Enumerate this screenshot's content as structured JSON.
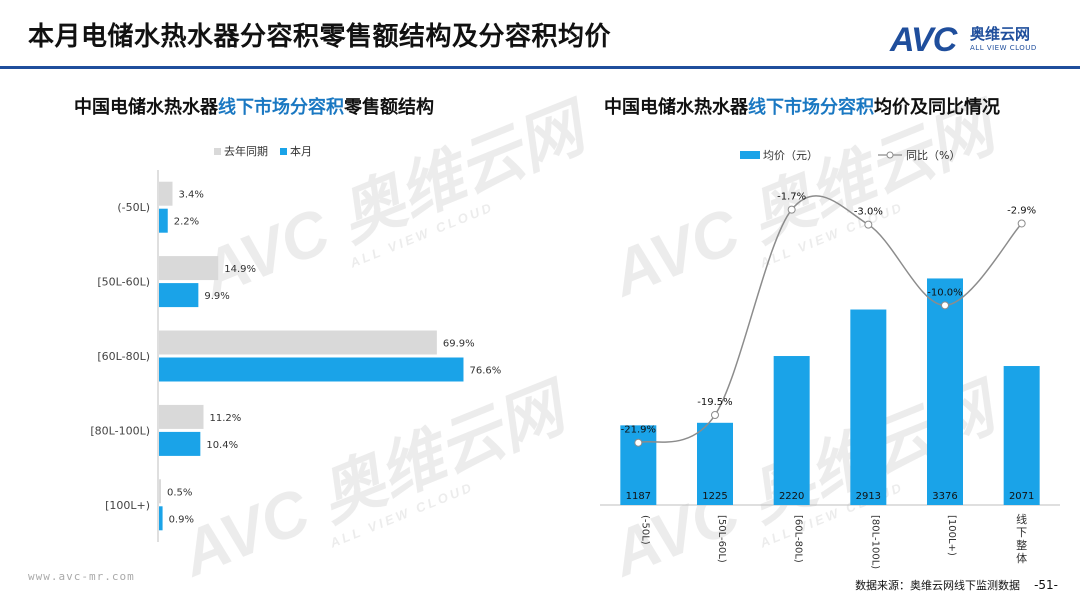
{
  "header": {
    "title": "本月电储水热水器分容积零售额结构及分容积均价",
    "logo_mark": "AVC",
    "logo_cn": "奥维云网",
    "logo_en": "ALL VIEW CLOUD"
  },
  "watermark": {
    "mark": "AVC",
    "cn": "奥维云网",
    "en": "ALL VIEW CLOUD"
  },
  "colors": {
    "primary": "#1aa3e8",
    "grey": "#d9d9d9",
    "brand": "#1f4e9c",
    "line": "#8c8c8c"
  },
  "left_chart": {
    "title_prefix": "中国电储水热水器",
    "title_highlight": "线下市场分容积",
    "title_suffix": "零售额结构"
  },
  "right_chart": {
    "title_prefix": "中国电储水热水器",
    "title_highlight": "线下市场分容积",
    "title_suffix": "均价及同比情况"
  },
  "chart_data": [
    {
      "type": "bar",
      "orientation": "horizontal",
      "categories": [
        "(-50L)",
        "[50L-60L)",
        "[60L-80L)",
        "[80L-100L)",
        "[100L+)"
      ],
      "series": [
        {
          "name": "去年同期",
          "values": [
            3.4,
            14.9,
            69.9,
            11.2,
            0.5
          ],
          "labels": [
            "3.4%",
            "14.9%",
            "69.9%",
            "11.2%",
            "0.5%"
          ]
        },
        {
          "name": "本月",
          "values": [
            2.2,
            9.9,
            76.6,
            10.4,
            0.9
          ],
          "labels": [
            "2.2%",
            "9.9%",
            "76.6%",
            "10.4%",
            "0.9%"
          ]
        }
      ],
      "grid": false,
      "legend": "top"
    },
    {
      "type": "bar",
      "categories": [
        "(-50L)",
        "[50L-60L)",
        "[60L-80L)",
        "[80L-100L)",
        "[100L+)",
        "线下整体"
      ],
      "series": [
        {
          "name": "均价（元）",
          "type": "bar",
          "values": [
            1187,
            1225,
            2220,
            2913,
            3376,
            2071
          ],
          "labels": [
            "1187",
            "1225",
            "2220",
            "2913",
            "3376",
            "2071"
          ]
        },
        {
          "name": "同比（%）",
          "type": "line",
          "values": [
            -21.9,
            -19.5,
            -1.7,
            -3.0,
            -10.0,
            -2.9
          ],
          "labels": [
            "-21.9%",
            "-19.5%",
            "-1.7%",
            "-3.0%",
            "-10.0%",
            "-2.9%"
          ]
        }
      ],
      "grid": false,
      "legend": "top"
    }
  ],
  "footer": {
    "website": "www.avc-mr.com",
    "source": "数据来源：奥维云网线下监测数据",
    "page": "-51-"
  }
}
